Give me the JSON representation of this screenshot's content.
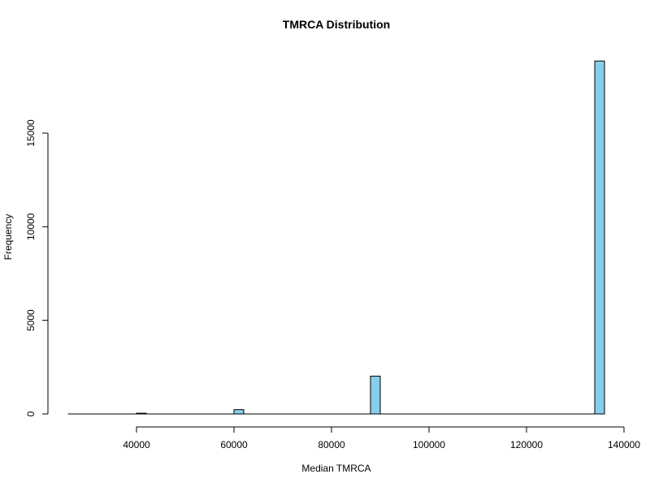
{
  "chart_data": {
    "type": "bar",
    "title": "TMRCA Distribution",
    "xlabel": "Median TMRCA",
    "ylabel": "Frequency",
    "xlim": [
      26000,
      136000
    ],
    "ylim": [
      0,
      19000
    ],
    "x_ticks": [
      40000,
      60000,
      80000,
      100000,
      120000,
      140000
    ],
    "y_ticks": [
      0,
      5000,
      10000,
      15000
    ],
    "bin_width": 2000,
    "bar_color": "#87CEEB",
    "bins": [
      {
        "start": 26000,
        "value": 0
      },
      {
        "start": 40000,
        "value": 40
      },
      {
        "start": 60000,
        "value": 230
      },
      {
        "start": 88000,
        "value": 2020
      },
      {
        "start": 134000,
        "value": 18850
      }
    ]
  }
}
